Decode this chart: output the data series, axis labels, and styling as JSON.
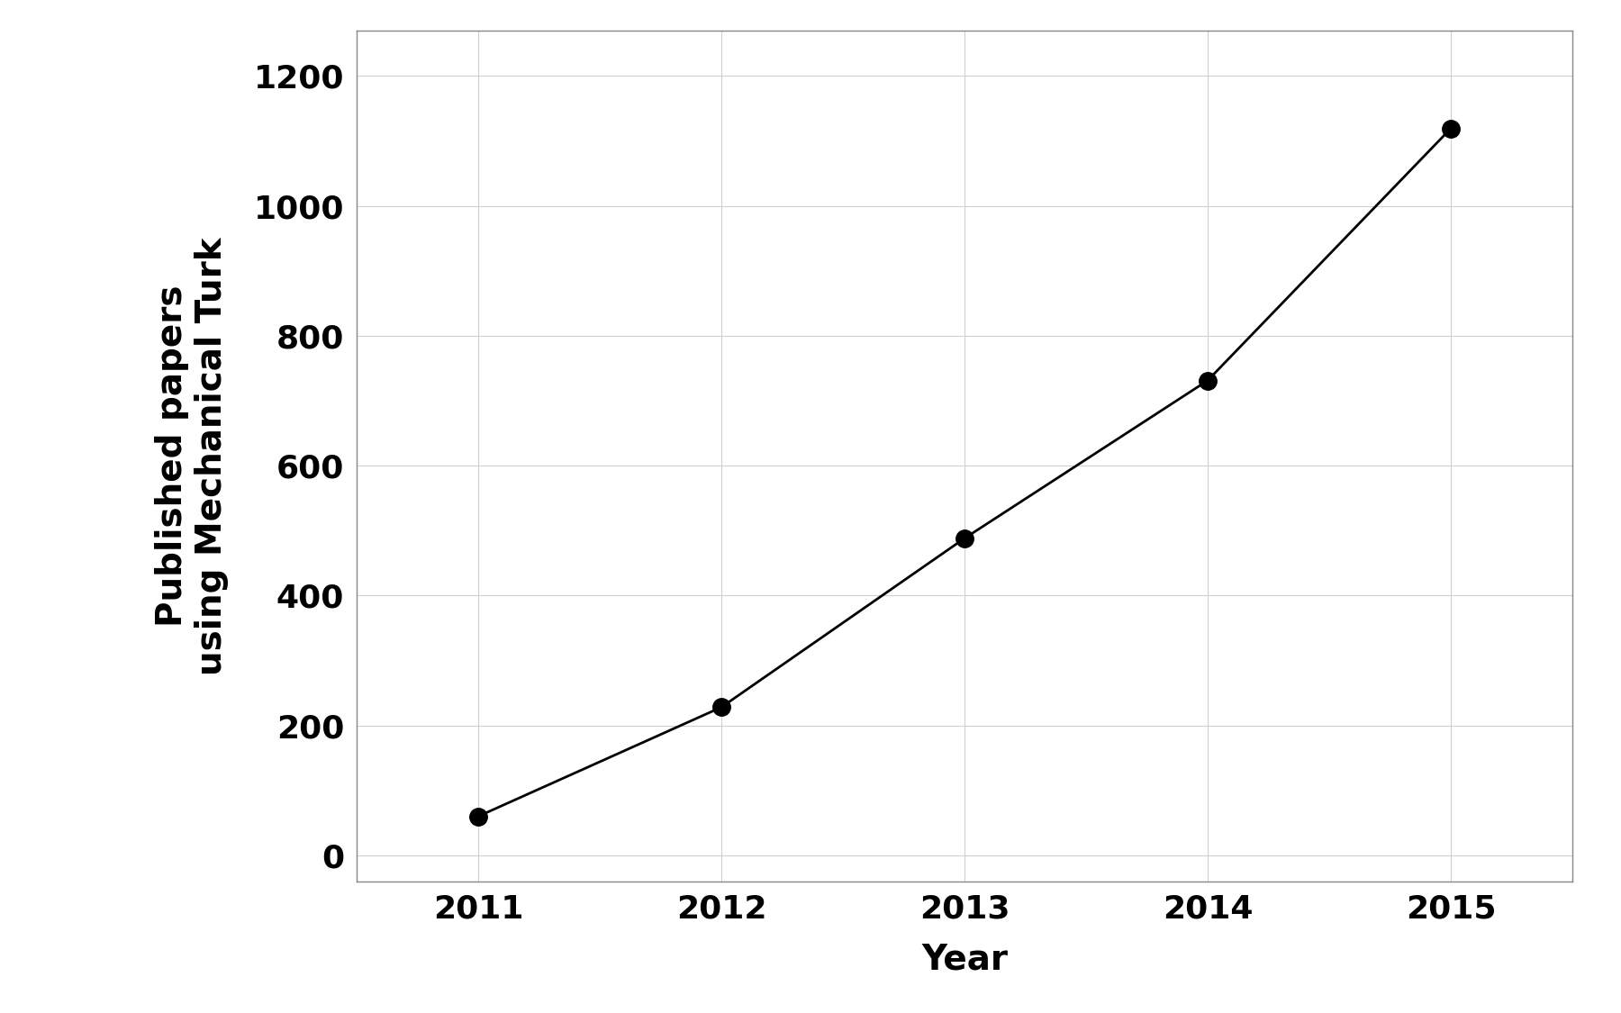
{
  "years": [
    2011,
    2012,
    2013,
    2014,
    2015
  ],
  "values": [
    60,
    228,
    488,
    731,
    1119
  ],
  "xlabel": "Year",
  "ylabel": "Published papers\nusing Mechanical Turk",
  "xlim": [
    2010.5,
    2015.5
  ],
  "ylim": [
    -40,
    1270
  ],
  "yticks": [
    0,
    200,
    400,
    600,
    800,
    1000,
    1200
  ],
  "xticks": [
    2011,
    2012,
    2013,
    2014,
    2015
  ],
  "line_color": "#000000",
  "marker_color": "#000000",
  "marker_size": 14,
  "line_width": 2.0,
  "background_color": "#ffffff",
  "grid_color": "#d0d0d0",
  "xlabel_fontsize": 28,
  "ylabel_fontsize": 28,
  "tick_fontsize": 26,
  "spine_color": "#888888"
}
